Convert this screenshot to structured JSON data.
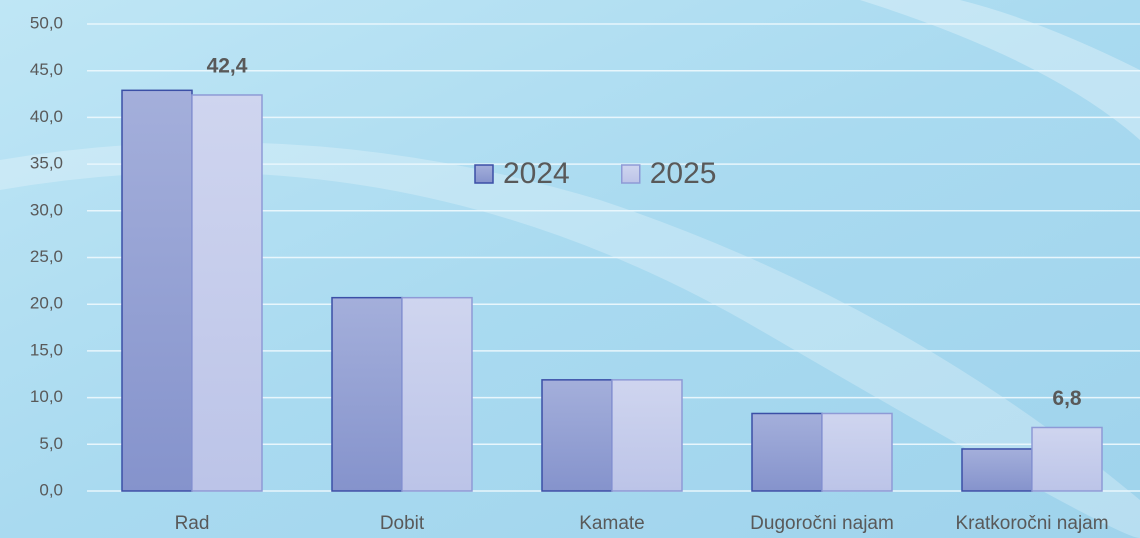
{
  "chart_data": {
    "type": "bar",
    "categories": [
      "Rad",
      "Dobit",
      "Kamate",
      "Dugoročni najam",
      "Kratkoročni najam"
    ],
    "series": [
      {
        "name": "2024",
        "color": "#93a1d4",
        "values": [
          42.9,
          20.7,
          11.9,
          8.3,
          4.5
        ]
      },
      {
        "name": "2025",
        "color": "#c6cdec",
        "values": [
          42.4,
          20.7,
          11.9,
          8.3,
          6.8
        ],
        "value_labels": [
          "42,4",
          null,
          null,
          null,
          "6,8"
        ]
      }
    ],
    "ylim": [
      0,
      50
    ],
    "yticks": [
      {
        "value": 0,
        "label": "0,0"
      },
      {
        "value": 5,
        "label": "5,0"
      },
      {
        "value": 10,
        "label": "10,0"
      },
      {
        "value": 15,
        "label": "15,0"
      },
      {
        "value": 20,
        "label": "20,0"
      },
      {
        "value": 25,
        "label": "25,0"
      },
      {
        "value": 30,
        "label": "30,0"
      },
      {
        "value": 35,
        "label": "35,0"
      },
      {
        "value": 40,
        "label": "40,0"
      },
      {
        "value": 45,
        "label": "45,0"
      },
      {
        "value": 50,
        "label": "50,0"
      }
    ],
    "grid": true,
    "legend": "center"
  }
}
